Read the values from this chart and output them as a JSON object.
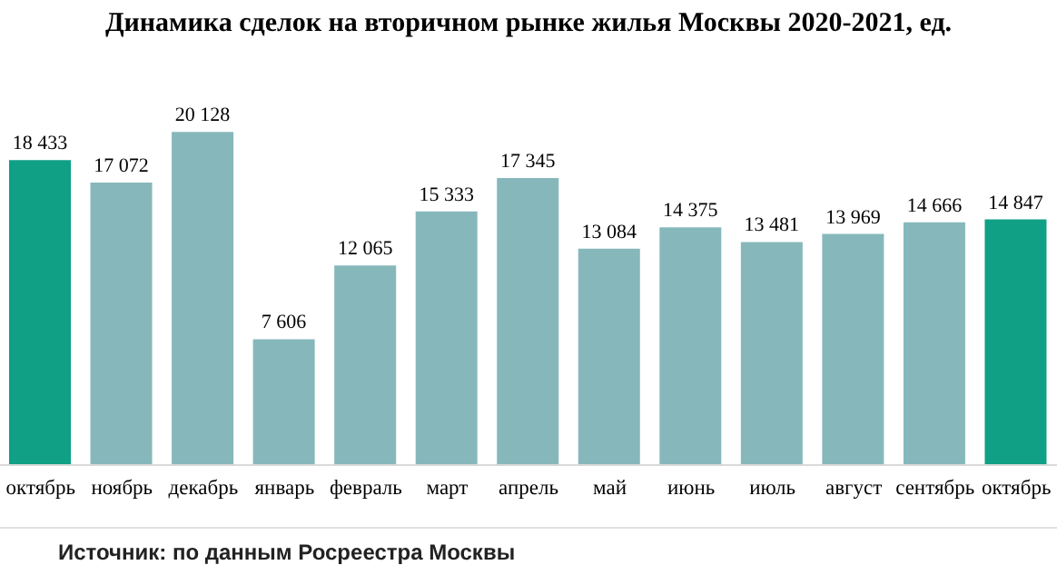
{
  "chart_data": {
    "type": "bar",
    "title": "Динамика сделок на вторичном рынке жилья Москвы 2020-2021, ед.",
    "categories": [
      "октябрь",
      "ноябрь",
      "декабрь",
      "январь",
      "февраль",
      "март",
      "апрель",
      "май",
      "июнь",
      "июль",
      "август",
      "сентябрь",
      "октябрь"
    ],
    "values": [
      18433,
      17072,
      20128,
      7606,
      12065,
      15333,
      17345,
      13084,
      14375,
      13481,
      13969,
      14666,
      14847
    ],
    "colors": [
      "#0fa086",
      "#86b8bb",
      "#86b8bb",
      "#86b8bb",
      "#86b8bb",
      "#86b8bb",
      "#86b8bb",
      "#86b8bb",
      "#86b8bb",
      "#86b8bb",
      "#86b8bb",
      "#86b8bb",
      "#0fa086"
    ],
    "value_labels": [
      "18 433",
      "17 072",
      "20 128",
      "7 606",
      "12 065",
      "15 333",
      "17 345",
      "13 084",
      "14 375",
      "13 481",
      "13 969",
      "14 666",
      "14 847"
    ],
    "annotations": [
      "Источник: по данным Росреестра Москвы"
    ]
  }
}
